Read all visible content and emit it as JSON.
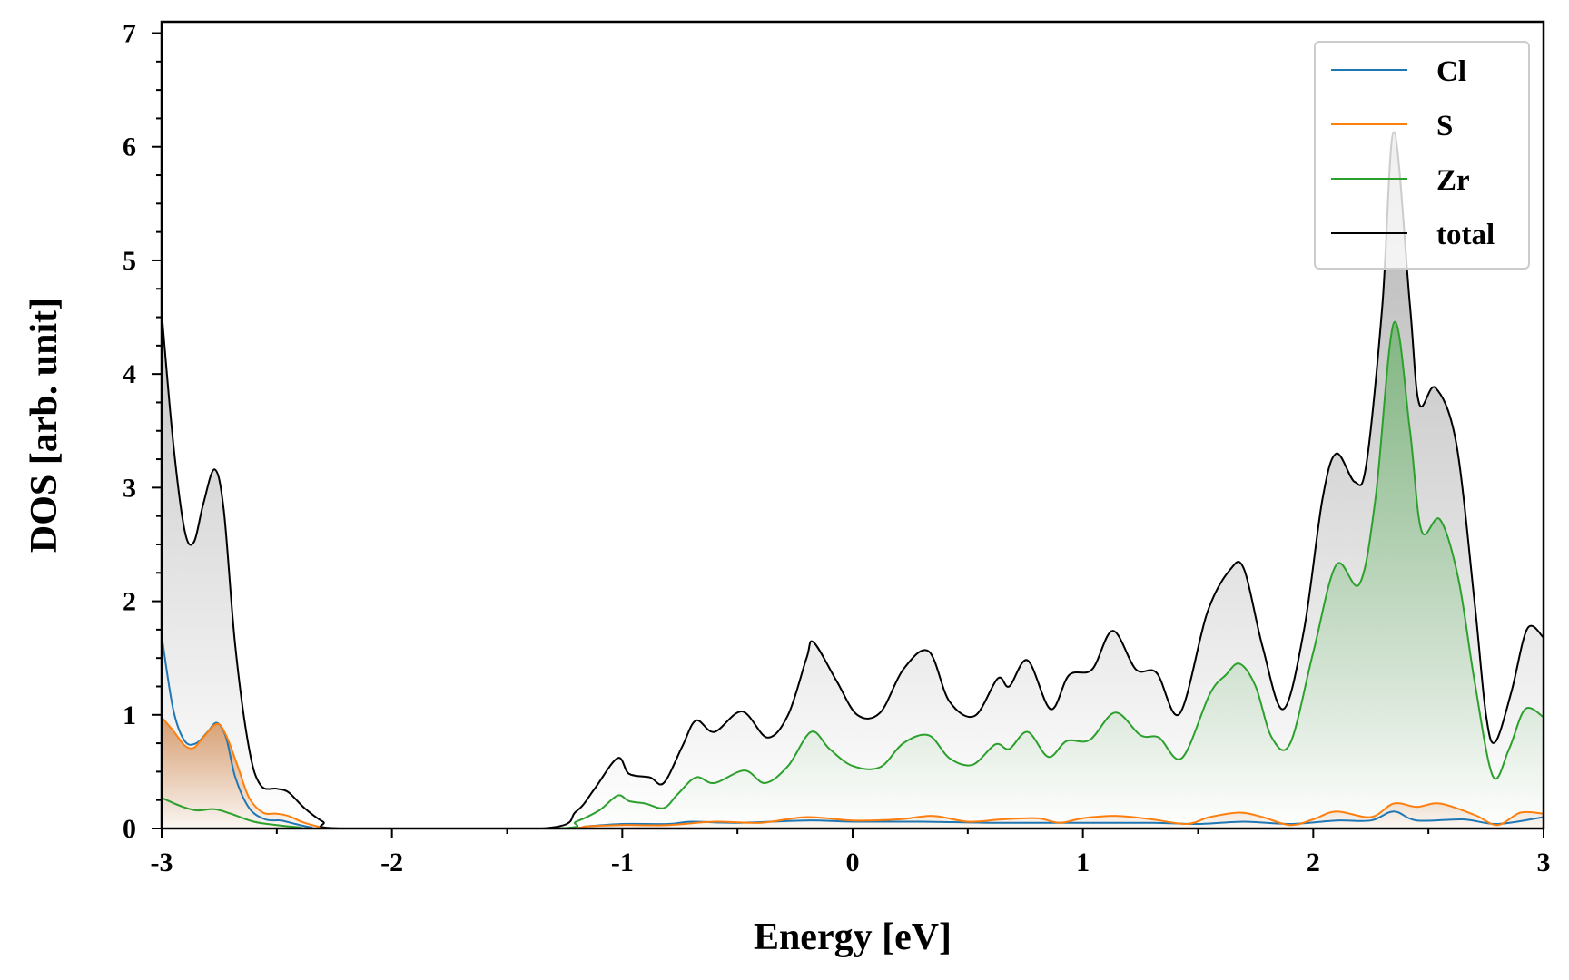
{
  "chart_data": {
    "type": "area",
    "title": "",
    "xlabel": "Energy [eV]",
    "ylabel": "DOS [arb. unit]",
    "xlim": [
      -3,
      3
    ],
    "ylim": [
      0,
      7.1
    ],
    "x_ticks": [
      -3,
      -2,
      -1,
      0,
      1,
      2,
      3
    ],
    "x_tick_labels": [
      "-3",
      "-2",
      "-1",
      "0",
      "1",
      "2",
      "3"
    ],
    "y_ticks": [
      0,
      1,
      2,
      3,
      4,
      5,
      6,
      7
    ],
    "y_tick_labels": [
      "0",
      "1",
      "2",
      "3",
      "4",
      "5",
      "6",
      "7"
    ],
    "grid": false,
    "legend_position": "top-right",
    "series": [
      {
        "name": "Cl",
        "color": "#1f77b4",
        "fill": false,
        "points": [
          [
            -3.0,
            1.7
          ],
          [
            -2.95,
            1.05
          ],
          [
            -2.9,
            0.77
          ],
          [
            -2.85,
            0.75
          ],
          [
            -2.8,
            0.85
          ],
          [
            -2.76,
            0.93
          ],
          [
            -2.72,
            0.8
          ],
          [
            -2.68,
            0.45
          ],
          [
            -2.62,
            0.18
          ],
          [
            -2.55,
            0.08
          ],
          [
            -2.48,
            0.07
          ],
          [
            -2.42,
            0.04
          ],
          [
            -2.35,
            0.01
          ],
          [
            -2.28,
            0.0
          ],
          [
            -1.3,
            0.0
          ],
          [
            -1.15,
            0.02
          ],
          [
            -1.0,
            0.04
          ],
          [
            -0.8,
            0.04
          ],
          [
            -0.7,
            0.06
          ],
          [
            -0.5,
            0.05
          ],
          [
            -0.2,
            0.07
          ],
          [
            0.0,
            0.06
          ],
          [
            0.3,
            0.06
          ],
          [
            0.6,
            0.05
          ],
          [
            1.0,
            0.05
          ],
          [
            1.3,
            0.05
          ],
          [
            1.5,
            0.04
          ],
          [
            1.7,
            0.06
          ],
          [
            1.9,
            0.04
          ],
          [
            2.1,
            0.07
          ],
          [
            2.25,
            0.07
          ],
          [
            2.35,
            0.15
          ],
          [
            2.45,
            0.07
          ],
          [
            2.65,
            0.08
          ],
          [
            2.8,
            0.04
          ],
          [
            3.0,
            0.1
          ]
        ]
      },
      {
        "name": "S",
        "color": "#ff7f0e",
        "fill": true,
        "points": [
          [
            -3.0,
            0.98
          ],
          [
            -2.95,
            0.86
          ],
          [
            -2.9,
            0.73
          ],
          [
            -2.86,
            0.71
          ],
          [
            -2.82,
            0.8
          ],
          [
            -2.76,
            0.92
          ],
          [
            -2.72,
            0.82
          ],
          [
            -2.67,
            0.55
          ],
          [
            -2.62,
            0.27
          ],
          [
            -2.56,
            0.14
          ],
          [
            -2.5,
            0.13
          ],
          [
            -2.45,
            0.11
          ],
          [
            -2.38,
            0.05
          ],
          [
            -2.3,
            0.01
          ],
          [
            -2.22,
            0.0
          ],
          [
            -1.3,
            0.0
          ],
          [
            -1.15,
            0.02
          ],
          [
            -1.0,
            0.03
          ],
          [
            -0.8,
            0.03
          ],
          [
            -0.6,
            0.06
          ],
          [
            -0.4,
            0.05
          ],
          [
            -0.2,
            0.1
          ],
          [
            0.0,
            0.07
          ],
          [
            0.2,
            0.08
          ],
          [
            0.35,
            0.11
          ],
          [
            0.5,
            0.06
          ],
          [
            0.65,
            0.08
          ],
          [
            0.8,
            0.09
          ],
          [
            0.9,
            0.05
          ],
          [
            1.0,
            0.09
          ],
          [
            1.15,
            0.11
          ],
          [
            1.3,
            0.08
          ],
          [
            1.45,
            0.04
          ],
          [
            1.55,
            0.1
          ],
          [
            1.68,
            0.14
          ],
          [
            1.78,
            0.1
          ],
          [
            1.9,
            0.03
          ],
          [
            2.0,
            0.08
          ],
          [
            2.1,
            0.15
          ],
          [
            2.25,
            0.1
          ],
          [
            2.35,
            0.22
          ],
          [
            2.45,
            0.19
          ],
          [
            2.55,
            0.22
          ],
          [
            2.7,
            0.12
          ],
          [
            2.8,
            0.03
          ],
          [
            2.9,
            0.14
          ],
          [
            3.0,
            0.13
          ]
        ]
      },
      {
        "name": "Zr",
        "color": "#2ca02c",
        "fill": true,
        "points": [
          [
            -3.0,
            0.27
          ],
          [
            -2.92,
            0.2
          ],
          [
            -2.85,
            0.16
          ],
          [
            -2.77,
            0.17
          ],
          [
            -2.7,
            0.13
          ],
          [
            -2.6,
            0.06
          ],
          [
            -2.5,
            0.03
          ],
          [
            -2.4,
            0.01
          ],
          [
            -2.3,
            0.0
          ],
          [
            -1.3,
            0.0
          ],
          [
            -1.2,
            0.06
          ],
          [
            -1.1,
            0.16
          ],
          [
            -1.02,
            0.29
          ],
          [
            -0.97,
            0.24
          ],
          [
            -0.9,
            0.22
          ],
          [
            -0.82,
            0.18
          ],
          [
            -0.76,
            0.3
          ],
          [
            -0.68,
            0.45
          ],
          [
            -0.6,
            0.4
          ],
          [
            -0.47,
            0.51
          ],
          [
            -0.38,
            0.4
          ],
          [
            -0.28,
            0.55
          ],
          [
            -0.18,
            0.85
          ],
          [
            -0.1,
            0.7
          ],
          [
            0.0,
            0.55
          ],
          [
            0.12,
            0.54
          ],
          [
            0.22,
            0.75
          ],
          [
            0.33,
            0.82
          ],
          [
            0.42,
            0.62
          ],
          [
            0.52,
            0.56
          ],
          [
            0.62,
            0.74
          ],
          [
            0.68,
            0.7
          ],
          [
            0.76,
            0.85
          ],
          [
            0.85,
            0.63
          ],
          [
            0.93,
            0.77
          ],
          [
            1.03,
            0.78
          ],
          [
            1.14,
            1.02
          ],
          [
            1.25,
            0.82
          ],
          [
            1.33,
            0.8
          ],
          [
            1.43,
            0.62
          ],
          [
            1.55,
            1.18
          ],
          [
            1.62,
            1.35
          ],
          [
            1.68,
            1.45
          ],
          [
            1.75,
            1.25
          ],
          [
            1.82,
            0.8
          ],
          [
            1.9,
            0.75
          ],
          [
            2.0,
            1.55
          ],
          [
            2.1,
            2.32
          ],
          [
            2.2,
            2.15
          ],
          [
            2.27,
            2.9
          ],
          [
            2.35,
            4.45
          ],
          [
            2.42,
            3.5
          ],
          [
            2.47,
            2.62
          ],
          [
            2.55,
            2.72
          ],
          [
            2.63,
            2.2
          ],
          [
            2.7,
            1.3
          ],
          [
            2.78,
            0.46
          ],
          [
            2.85,
            0.7
          ],
          [
            2.92,
            1.05
          ],
          [
            3.0,
            0.98
          ]
        ]
      },
      {
        "name": "total",
        "color": "#000000",
        "fill": true,
        "points": [
          [
            -3.0,
            4.55
          ],
          [
            -2.95,
            3.4
          ],
          [
            -2.9,
            2.62
          ],
          [
            -2.86,
            2.52
          ],
          [
            -2.82,
            2.85
          ],
          [
            -2.77,
            3.16
          ],
          [
            -2.73,
            2.8
          ],
          [
            -2.68,
            1.6
          ],
          [
            -2.62,
            0.7
          ],
          [
            -2.57,
            0.38
          ],
          [
            -2.5,
            0.35
          ],
          [
            -2.45,
            0.32
          ],
          [
            -2.38,
            0.18
          ],
          [
            -2.3,
            0.06
          ],
          [
            -2.22,
            0.0
          ],
          [
            -1.35,
            0.0
          ],
          [
            -1.2,
            0.15
          ],
          [
            -1.12,
            0.35
          ],
          [
            -1.02,
            0.62
          ],
          [
            -0.97,
            0.48
          ],
          [
            -0.88,
            0.45
          ],
          [
            -0.82,
            0.4
          ],
          [
            -0.74,
            0.72
          ],
          [
            -0.68,
            0.95
          ],
          [
            -0.6,
            0.85
          ],
          [
            -0.48,
            1.03
          ],
          [
            -0.37,
            0.8
          ],
          [
            -0.28,
            1.0
          ],
          [
            -0.2,
            1.5
          ],
          [
            -0.17,
            1.64
          ],
          [
            -0.07,
            1.3
          ],
          [
            0.02,
            1.0
          ],
          [
            0.12,
            1.02
          ],
          [
            0.22,
            1.4
          ],
          [
            0.33,
            1.56
          ],
          [
            0.42,
            1.12
          ],
          [
            0.53,
            0.99
          ],
          [
            0.63,
            1.32
          ],
          [
            0.68,
            1.25
          ],
          [
            0.76,
            1.48
          ],
          [
            0.86,
            1.05
          ],
          [
            0.94,
            1.35
          ],
          [
            1.04,
            1.4
          ],
          [
            1.13,
            1.74
          ],
          [
            1.23,
            1.4
          ],
          [
            1.32,
            1.37
          ],
          [
            1.42,
            1.01
          ],
          [
            1.54,
            1.9
          ],
          [
            1.64,
            2.28
          ],
          [
            1.7,
            2.28
          ],
          [
            1.78,
            1.6
          ],
          [
            1.87,
            1.05
          ],
          [
            1.96,
            1.75
          ],
          [
            2.04,
            2.9
          ],
          [
            2.1,
            3.3
          ],
          [
            2.18,
            3.05
          ],
          [
            2.23,
            3.2
          ],
          [
            2.3,
            4.6
          ],
          [
            2.35,
            6.13
          ],
          [
            2.42,
            4.6
          ],
          [
            2.46,
            3.74
          ],
          [
            2.53,
            3.88
          ],
          [
            2.62,
            3.4
          ],
          [
            2.7,
            2.0
          ],
          [
            2.75,
            1.0
          ],
          [
            2.79,
            0.76
          ],
          [
            2.86,
            1.2
          ],
          [
            2.93,
            1.76
          ],
          [
            3.0,
            1.68
          ]
        ]
      }
    ]
  }
}
